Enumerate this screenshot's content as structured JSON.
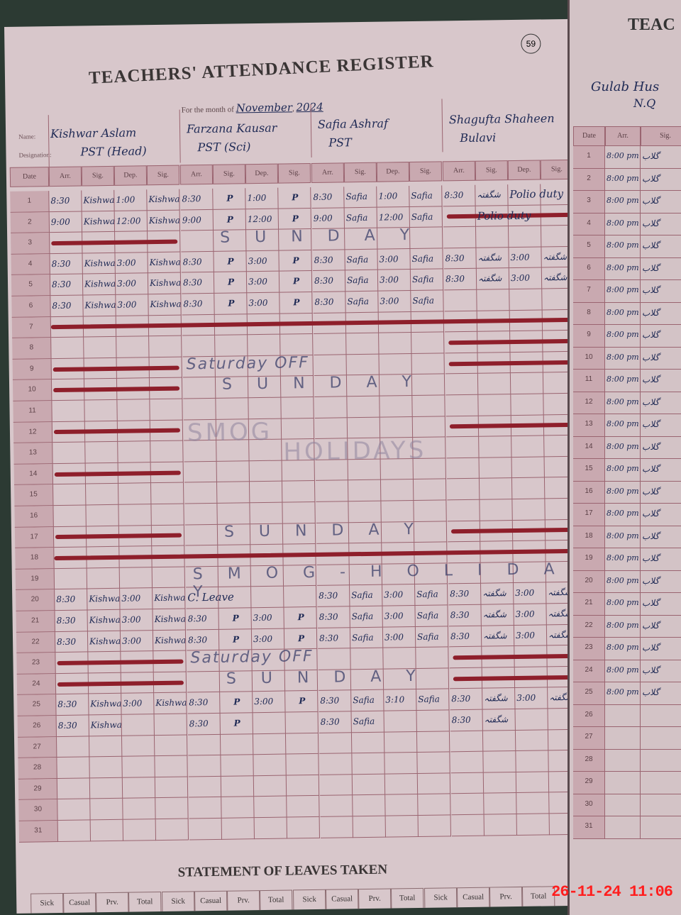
{
  "register": {
    "title": "TEACHERS' ATTENDANCE REGISTER",
    "page_number": "59",
    "month_label": "For the month of",
    "month": "November",
    "year": "2024",
    "name_label": "Name:",
    "designation_label": "Designation:",
    "column_headers": [
      "Arr.",
      "Sig.",
      "Dep.",
      "Sig."
    ],
    "date_header": "Date"
  },
  "teachers": [
    {
      "name": "Kishwar Aslam",
      "designation": "PST (Head)"
    },
    {
      "name": "Farzana Kausar",
      "designation": "PST (Sci)"
    },
    {
      "name": "Safia Ashraf",
      "designation": "PST"
    },
    {
      "name": "Shagufta Shaheen",
      "designation": "Bulavi"
    }
  ],
  "rows": {
    "1": [
      [
        "8:30",
        "Kishwar",
        "1:00",
        "Kishwar"
      ],
      [
        "8:30",
        "P",
        "1:00",
        "P"
      ],
      [
        "8:30",
        "Safia",
        "1:00",
        "Safia"
      ],
      [
        "8:30",
        "شگفتہ",
        "Polio duty",
        ""
      ]
    ],
    "2": [
      [
        "9:00",
        "Kishwar",
        "12:00",
        "Kishwar"
      ],
      [
        "9:00",
        "P",
        "12:00",
        "P"
      ],
      [
        "9:00",
        "Safia",
        "12:00",
        "Safia"
      ],
      [
        "",
        "Polio duty",
        "",
        ""
      ]
    ],
    "4": [
      [
        "8:30",
        "Kishwar",
        "3:00",
        "Kishwar"
      ],
      [
        "8:30",
        "P",
        "3:00",
        "P"
      ],
      [
        "8:30",
        "Safia",
        "3:00",
        "Safia"
      ],
      [
        "8:30",
        "شگفتہ",
        "3:00",
        "شگفتہ"
      ]
    ],
    "5": [
      [
        "8:30",
        "Kishwar",
        "3:00",
        "Kishwar"
      ],
      [
        "8:30",
        "P",
        "3:00",
        "P"
      ],
      [
        "8:30",
        "Safia",
        "3:00",
        "Safia"
      ],
      [
        "8:30",
        "شگفتہ",
        "3:00",
        "شگفتہ"
      ]
    ],
    "6": [
      [
        "8:30",
        "Kishwar",
        "3:00",
        "Kishwar"
      ],
      [
        "8:30",
        "P",
        "3:00",
        "P"
      ],
      [
        "8:30",
        "Safia",
        "3:00",
        "Safia"
      ],
      [
        "",
        "",
        "",
        ""
      ]
    ],
    "20": [
      [
        "8:30",
        "Kishwar",
        "3:00",
        "Kishwar"
      ],
      [
        "C. Leave",
        "",
        "",
        ""
      ],
      [
        "8:30",
        "Safia",
        "3:00",
        "Safia"
      ],
      [
        "8:30",
        "شگفتہ",
        "3:00",
        "شگفتہ"
      ]
    ],
    "21": [
      [
        "8:30",
        "Kishwar",
        "3:00",
        "Kishwar"
      ],
      [
        "8:30",
        "P",
        "3:00",
        "P"
      ],
      [
        "8:30",
        "Safia",
        "3:00",
        "Safia"
      ],
      [
        "8:30",
        "شگفتہ",
        "3:00",
        "شگفتہ"
      ]
    ],
    "22": [
      [
        "8:30",
        "Kishwar",
        "3:00",
        "Kishwar"
      ],
      [
        "8:30",
        "P",
        "3:00",
        "P"
      ],
      [
        "8:30",
        "Safia",
        "3:00",
        "Safia"
      ],
      [
        "8:30",
        "شگفتہ",
        "3:00",
        "شگفتہ"
      ]
    ],
    "25": [
      [
        "8:30",
        "Kishwar",
        "3:00",
        "Kishwar"
      ],
      [
        "8:30",
        "P",
        "3:00",
        "P"
      ],
      [
        "8:30",
        "Safia",
        "3:10",
        "Safia"
      ],
      [
        "8:30",
        "شگفتہ",
        "3:00",
        "شگفتہ"
      ]
    ],
    "26": [
      [
        "8:30",
        "Kishwar",
        "",
        ""
      ],
      [
        "8:30",
        "P",
        "",
        ""
      ],
      [
        "8:30",
        "Safia",
        "",
        ""
      ],
      [
        "8:30",
        "شگفتہ",
        "",
        ""
      ]
    ]
  },
  "annotations": [
    {
      "row": 3,
      "text": "S U N D A Y"
    },
    {
      "row": 9,
      "text": "Saturday OFF"
    },
    {
      "row": 10,
      "text": "S U N D A Y"
    },
    {
      "row": 12,
      "text": "SMOG"
    },
    {
      "row": 13,
      "text": "HOLIDAYS"
    },
    {
      "row": 17,
      "text": "S U N D A Y"
    },
    {
      "row": 19,
      "text": "S M O G - H O L I D A Y"
    },
    {
      "row": 23,
      "text": "Saturday OFF"
    },
    {
      "row": 24,
      "text": "S U N D A Y"
    }
  ],
  "right_page": {
    "title": "TEAC",
    "name": "Gulab Hus",
    "designation": "N.Q",
    "column_headers": [
      "Date",
      "Arr.",
      "Sig."
    ],
    "arrival": "8:00 pm",
    "signature": "گلاب"
  },
  "footer": {
    "title": "STATEMENT OF LEAVES TAKEN",
    "columns": [
      "Sick",
      "Casual",
      "Prv.",
      "Total"
    ]
  },
  "camera_timestamp": "26-11-24 11:06",
  "colors": {
    "ink": "#1f2a55",
    "strike": "#8e1f2b",
    "grid": "#9a6470"
  }
}
